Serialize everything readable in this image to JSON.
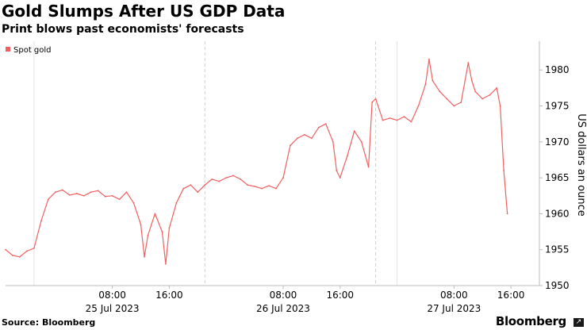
{
  "header": {
    "title": "Gold Slumps After US GDP Data",
    "subtitle": "Print blows past economists' forecasts"
  },
  "footer": {
    "source": "Source: Bloomberg",
    "brand": "Bloomberg"
  },
  "icons": {
    "brand_badge": "arrow-icon"
  },
  "colors": {
    "series": "#f06060",
    "grid": "#cfcfcf",
    "axis": "#bbbbbb"
  },
  "chart_data": {
    "type": "line",
    "title": "Gold Slumps After US GDP Data",
    "subtitle": "Print blows past economists' forecasts",
    "ylabel": "US dollars an ounce",
    "y_axis_position": "right",
    "ylim": [
      1950,
      1984
    ],
    "yticks": [
      "1950",
      "1955",
      "1960",
      "1965",
      "1970",
      "1975",
      "1980"
    ],
    "xlim": [
      "2023-07-24 17:00",
      "2023-07-27 20:00"
    ],
    "xticks": [
      {
        "time": "08:00",
        "date": "25 Jul 2023",
        "x": "2023-07-25 08:00"
      },
      {
        "time": "16:00",
        "date": "",
        "x": "2023-07-25 16:00"
      },
      {
        "time": "08:00",
        "date": "26 Jul 2023",
        "x": "2023-07-26 08:00"
      },
      {
        "time": "16:00",
        "date": "",
        "x": "2023-07-26 16:00"
      },
      {
        "time": "08:00",
        "date": "27 Jul 2023",
        "x": "2023-07-27 08:00"
      },
      {
        "time": "16:00",
        "date": "",
        "x": "2023-07-27 16:00"
      }
    ],
    "session_dividers": [
      "2023-07-25 21:00",
      "2023-07-26 21:00"
    ],
    "grid": "vertical dashed at session breaks",
    "legend": "top-left",
    "series": [
      {
        "name": "Spot gold",
        "points": [
          [
            "2023-07-24 17:00",
            1955.0
          ],
          [
            "2023-07-24 18:00",
            1954.2
          ],
          [
            "2023-07-24 19:00",
            1954.0
          ],
          [
            "2023-07-24 20:00",
            1954.8
          ],
          [
            "2023-07-24 21:00",
            1955.2
          ],
          [
            "2023-07-24 22:00",
            1959.0
          ],
          [
            "2023-07-24 23:00",
            1962.0
          ],
          [
            "2023-07-25 00:00",
            1963.0
          ],
          [
            "2023-07-25 01:00",
            1963.3
          ],
          [
            "2023-07-25 02:00",
            1962.6
          ],
          [
            "2023-07-25 03:00",
            1962.8
          ],
          [
            "2023-07-25 04:00",
            1962.5
          ],
          [
            "2023-07-25 05:00",
            1963.0
          ],
          [
            "2023-07-25 06:00",
            1963.2
          ],
          [
            "2023-07-25 07:00",
            1962.4
          ],
          [
            "2023-07-25 08:00",
            1962.5
          ],
          [
            "2023-07-25 09:00",
            1962.0
          ],
          [
            "2023-07-25 10:00",
            1963.0
          ],
          [
            "2023-07-25 11:00",
            1961.5
          ],
          [
            "2023-07-25 12:00",
            1958.5
          ],
          [
            "2023-07-25 12:30",
            1954.0
          ],
          [
            "2023-07-25 13:00",
            1957.0
          ],
          [
            "2023-07-25 14:00",
            1960.0
          ],
          [
            "2023-07-25 15:00",
            1957.5
          ],
          [
            "2023-07-25 15:30",
            1953.0
          ],
          [
            "2023-07-25 16:00",
            1958.0
          ],
          [
            "2023-07-25 17:00",
            1961.5
          ],
          [
            "2023-07-25 18:00",
            1963.5
          ],
          [
            "2023-07-25 19:00",
            1964.0
          ],
          [
            "2023-07-25 20:00",
            1963.0
          ],
          [
            "2023-07-25 21:00",
            1964.0
          ],
          [
            "2023-07-25 22:00",
            1964.8
          ],
          [
            "2023-07-25 23:00",
            1964.5
          ],
          [
            "2023-07-26 00:00",
            1965.0
          ],
          [
            "2023-07-26 01:00",
            1965.3
          ],
          [
            "2023-07-26 02:00",
            1964.8
          ],
          [
            "2023-07-26 03:00",
            1964.0
          ],
          [
            "2023-07-26 04:00",
            1963.8
          ],
          [
            "2023-07-26 05:00",
            1963.5
          ],
          [
            "2023-07-26 06:00",
            1963.9
          ],
          [
            "2023-07-26 07:00",
            1963.5
          ],
          [
            "2023-07-26 08:00",
            1965.0
          ],
          [
            "2023-07-26 09:00",
            1969.5
          ],
          [
            "2023-07-26 10:00",
            1970.5
          ],
          [
            "2023-07-26 11:00",
            1971.0
          ],
          [
            "2023-07-26 12:00",
            1970.5
          ],
          [
            "2023-07-26 13:00",
            1972.0
          ],
          [
            "2023-07-26 14:00",
            1972.5
          ],
          [
            "2023-07-26 15:00",
            1970.0
          ],
          [
            "2023-07-26 15:30",
            1966.0
          ],
          [
            "2023-07-26 16:00",
            1965.0
          ],
          [
            "2023-07-26 17:00",
            1968.0
          ],
          [
            "2023-07-26 18:00",
            1971.5
          ],
          [
            "2023-07-26 19:00",
            1970.0
          ],
          [
            "2023-07-26 20:00",
            1966.5
          ],
          [
            "2023-07-26 20:30",
            1975.5
          ],
          [
            "2023-07-26 21:00",
            1976.0
          ],
          [
            "2023-07-26 22:00",
            1973.0
          ],
          [
            "2023-07-26 23:00",
            1973.3
          ],
          [
            "2023-07-27 00:00",
            1973.0
          ],
          [
            "2023-07-27 01:00",
            1973.5
          ],
          [
            "2023-07-27 02:00",
            1972.8
          ],
          [
            "2023-07-27 03:00",
            1975.0
          ],
          [
            "2023-07-27 04:00",
            1978.0
          ],
          [
            "2023-07-27 04:30",
            1981.5
          ],
          [
            "2023-07-27 05:00",
            1978.5
          ],
          [
            "2023-07-27 06:00",
            1977.0
          ],
          [
            "2023-07-27 07:00",
            1976.0
          ],
          [
            "2023-07-27 08:00",
            1975.0
          ],
          [
            "2023-07-27 09:00",
            1975.5
          ],
          [
            "2023-07-27 10:00",
            1981.0
          ],
          [
            "2023-07-27 10:30",
            1978.5
          ],
          [
            "2023-07-27 11:00",
            1977.0
          ],
          [
            "2023-07-27 12:00",
            1976.0
          ],
          [
            "2023-07-27 13:00",
            1976.5
          ],
          [
            "2023-07-27 14:00",
            1977.5
          ],
          [
            "2023-07-27 14:30",
            1975.0
          ],
          [
            "2023-07-27 15:00",
            1966.0
          ],
          [
            "2023-07-27 15:30",
            1960.0
          ]
        ]
      }
    ]
  }
}
